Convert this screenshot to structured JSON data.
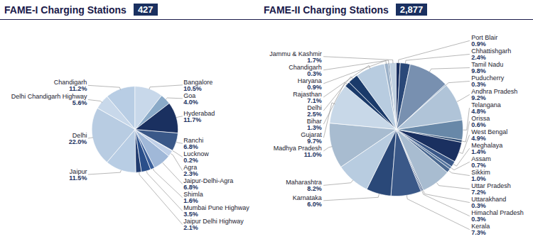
{
  "chart_data": [
    {
      "type": "pie",
      "title": "FAME-I Charging Stations",
      "annotations": [
        "427"
      ],
      "categories": [
        "Chandigarh",
        "Delhi Chandigarh Highway",
        "Delhi",
        "Jaipur",
        "Jaipur Delhi Highway",
        "Mumbai Pune Highway",
        "Shimla",
        "Jaipur-Delhi-Agra",
        "Agra",
        "Lucknow",
        "Ranchi",
        "Hyderabad",
        "Goa",
        "Bangalore"
      ],
      "values": [
        11.2,
        5.6,
        22.0,
        11.5,
        2.1,
        3.5,
        1.6,
        6.8,
        2.3,
        0.2,
        6.8,
        11.7,
        4.0,
        10.5
      ],
      "value_labels": [
        "11.2%",
        "5.6%",
        "22.0%",
        "11.5%",
        "2.1%",
        "3.5%",
        "1.6%",
        "6.8%",
        "2.3%",
        "0.2%",
        "6.8%",
        "11.7%",
        "4.0%",
        "10.5%"
      ],
      "colors": [
        "#b8cde4",
        "#c8d8ea",
        "#b8cce2",
        "#b8cde4",
        "#1f3a6e",
        "#2a4f8a",
        "#3a5f9a",
        "#a0b8d8",
        "#c0d0e8",
        "#6080b0",
        "#3a5888",
        "#1a3060",
        "#8aaac8",
        "#c8d8ea"
      ],
      "data_labels": true
    },
    {
      "type": "pie",
      "title": "FAME-II Charging Stations",
      "annotations": [
        "2,877"
      ],
      "categories": [
        "Jammu & Kashmir",
        "Chandigarh",
        "Haryana",
        "Rajasthan",
        "Delhi",
        "Bihar",
        "Gujarat",
        "Madhya Pradesh",
        "Maharashtra",
        "Karnataka",
        "Kerala",
        "Himachal Pradesh",
        "Uttarakhand",
        "Uttar Pradesh",
        "Sikkim",
        "Assam",
        "Meghalaya",
        "West Bengal",
        "Orissa",
        "Telangana",
        "Andhra Pradesh",
        "Puducherry",
        "Tamil Nadu",
        "Chhattishgarh",
        "Port Blair"
      ],
      "values": [
        1.7,
        0.3,
        0.9,
        7.1,
        2.5,
        1.3,
        9.7,
        11.0,
        8.2,
        6.0,
        7.3,
        0.3,
        0.3,
        7.2,
        1.0,
        0.7,
        1.4,
        4.9,
        0.6,
        4.8,
        9.2,
        0.3,
        9.8,
        2.4,
        0.9
      ],
      "value_labels": [
        "1.7%",
        "0.3%",
        "0.9%",
        "7.1%",
        "2.5%",
        "1.3%",
        "9.7%",
        "11.0%",
        "8.2%",
        "6.0%",
        "7.3%",
        "0.3%",
        "0.3%",
        "7.2%",
        "1.0%",
        "0.7%",
        "1.4%",
        "4.9%",
        "0.6%",
        "4.8%",
        "9.2%",
        "0.3%",
        "9.8%",
        "2.4%",
        "0.9%"
      ],
      "colors": [
        "#c0d0e0",
        "#3a5f8a",
        "#9ab0c8",
        "#b8cce0",
        "#1a3a6a",
        "#1a3a6a",
        "#c8d8e8",
        "#a8bcd0",
        "#b8cce0",
        "#2a4878",
        "#3a5888",
        "#3a5888",
        "#2a4878",
        "#a8bcd0",
        "#4a6890",
        "#5878a0",
        "#3a5888",
        "#1a3060",
        "#2a4870",
        "#6888a8",
        "#b0c4d8",
        "#98b0c8",
        "#7890b0",
        "#2a4878",
        "#1a3060"
      ],
      "data_labels": true
    }
  ]
}
